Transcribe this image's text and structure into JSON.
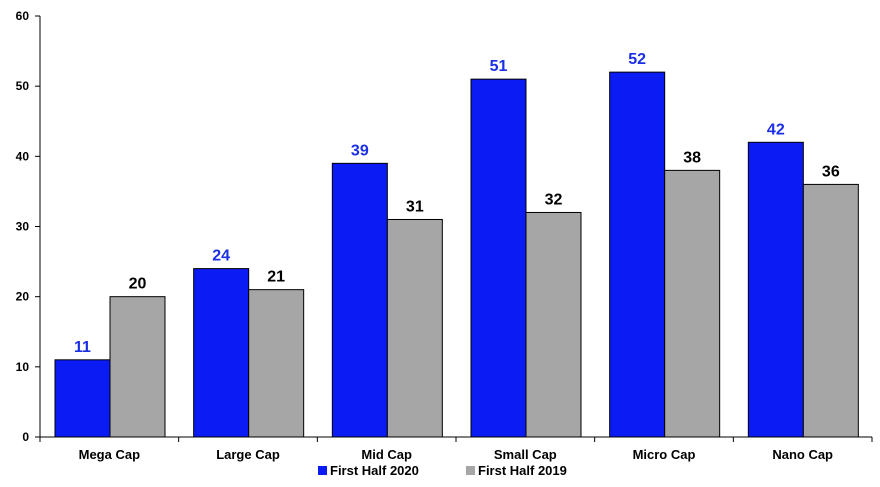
{
  "chart_data": {
    "type": "bar",
    "categories": [
      "Mega Cap",
      "Large Cap",
      "Mid Cap",
      "Small Cap",
      "Micro Cap",
      "Nano Cap"
    ],
    "series": [
      {
        "name": "First Half 2020",
        "values": [
          11,
          24,
          39,
          51,
          52,
          42
        ],
        "color": "#0b1bf4",
        "label_color": "#1a2fe6"
      },
      {
        "name": "First Half 2019",
        "values": [
          20,
          21,
          31,
          32,
          38,
          36
        ],
        "color": "#a6a6a6",
        "label_color": "#000000"
      }
    ],
    "yticks": [
      0,
      10,
      20,
      30,
      40,
      50,
      60
    ],
    "ylim": [
      0,
      60
    ],
    "grid": false,
    "legend_position": "bottom-center",
    "title": "",
    "xlabel": "",
    "ylabel": ""
  }
}
